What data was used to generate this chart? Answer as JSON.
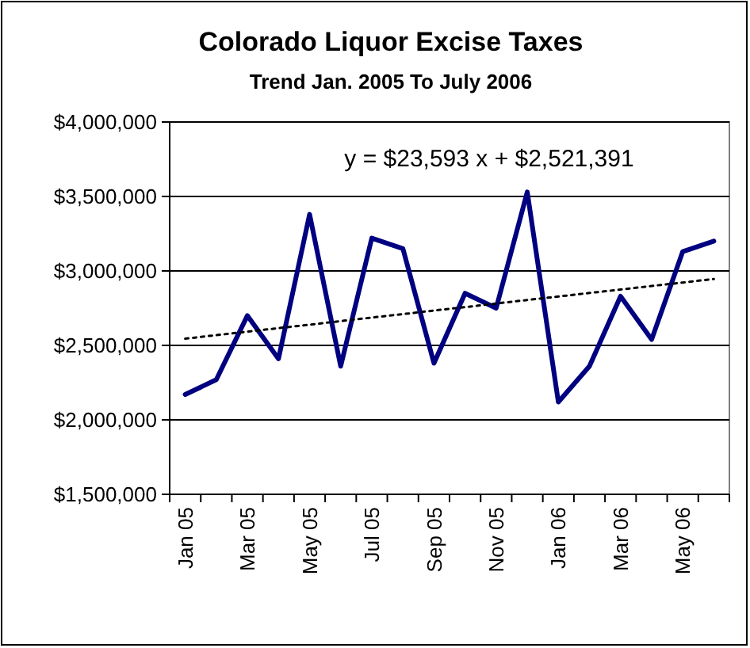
{
  "chart_data": {
    "type": "line",
    "title": "Colorado Liquor Excise Taxes",
    "subtitle": "Trend Jan. 2005 To July 2006",
    "categories": [
      "Jan 05",
      null,
      "Mar 05",
      null,
      "May 05",
      null,
      "Jul 05",
      null,
      "Sep 05",
      null,
      "Nov 05",
      null,
      "Jan 06",
      null,
      "Mar 06",
      null,
      "May 06",
      null
    ],
    "series": [
      {
        "color": "#000080",
        "values": [
          2170000,
          2270000,
          2700000,
          2410000,
          3380000,
          2360000,
          3220000,
          3150000,
          2380000,
          2850000,
          2750000,
          3530000,
          2120000,
          2360000,
          2830000,
          2540000,
          3130000,
          3200000
        ]
      },
      {
        "type": "line",
        "line_style": "dotted",
        "color": "#000000",
        "values": [
          2545000,
          2569000,
          2592000,
          2616000,
          2639000,
          2663000,
          2687000,
          2710000,
          2734000,
          2757000,
          2781000,
          2805000,
          2828000,
          2852000,
          2875000,
          2899000,
          2922000,
          2946000
        ]
      }
    ],
    "ylim": [
      1500000,
      4000000
    ],
    "yticks": [
      {
        "value": 1500000,
        "label": "$1,500,000"
      },
      {
        "value": 2000000,
        "label": "$2,000,000"
      },
      {
        "value": 2500000,
        "label": "$2,500,000"
      },
      {
        "value": 3000000,
        "label": "$3,000,000"
      },
      {
        "value": 3500000,
        "label": "$3,500,000"
      },
      {
        "value": 4000000,
        "label": "$4,000,000"
      }
    ],
    "grid": "y",
    "marker": "none",
    "annotations": [
      "y =  $23,593 x +  $2,521,391"
    ]
  }
}
